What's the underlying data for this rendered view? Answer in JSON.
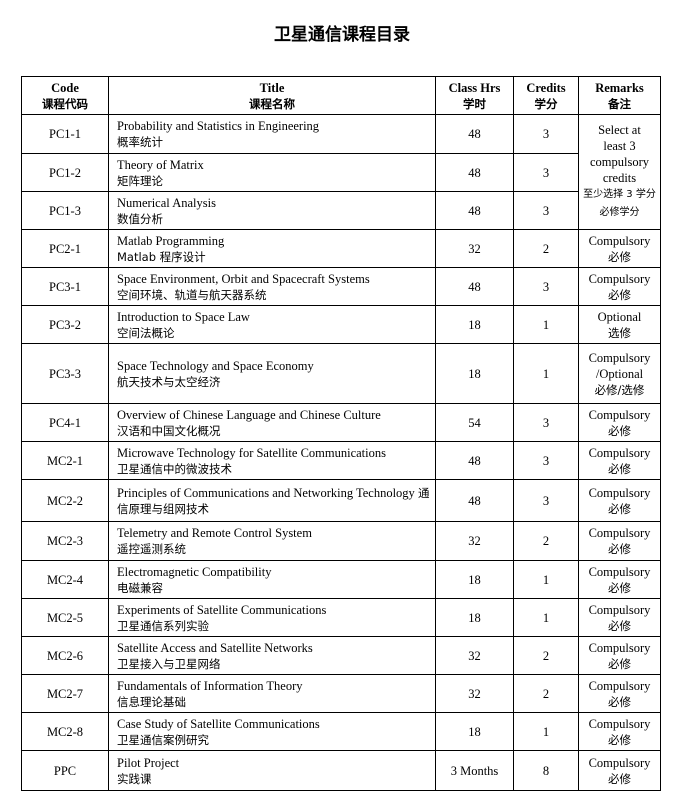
{
  "title": "卫星通信课程目录",
  "headers": {
    "code": {
      "en": "Code",
      "zh": "课程代码"
    },
    "title": {
      "en": "Title",
      "zh": "课程名称"
    },
    "hours": {
      "en": "Class Hrs",
      "zh": "学时"
    },
    "credits": {
      "en": "Credits",
      "zh": "学分"
    },
    "remarks": {
      "en": "Remarks",
      "zh": "备注"
    }
  },
  "group_remark": {
    "en": "Select at least 3 compulsory credits",
    "zh": "至少选择 3 学分必修学分"
  },
  "rows": [
    {
      "code": "PC1-1",
      "en": "Probability and Statistics in Engineering",
      "zh": "概率统计",
      "hours": "48",
      "credits": "3"
    },
    {
      "code": "PC1-2",
      "en": "Theory of Matrix",
      "zh": "矩阵理论",
      "hours": "48",
      "credits": "3"
    },
    {
      "code": "PC1-3",
      "en": "Numerical Analysis",
      "zh": "数值分析",
      "hours": "48",
      "credits": "3"
    },
    {
      "code": "PC2-1",
      "en": "Matlab Programming",
      "zh": "Matlab 程序设计",
      "hours": "32",
      "credits": "2",
      "r_en": "Compulsory",
      "r_zh": "必修"
    },
    {
      "code": "PC3-1",
      "en": "Space Environment, Orbit and Spacecraft Systems",
      "zh": "空间环境、轨道与航天器系统",
      "hours": "48",
      "credits": "3",
      "r_en": "Compulsory",
      "r_zh": "必修"
    },
    {
      "code": "PC3-2",
      "en": "Introduction to Space Law",
      "zh": "空间法概论",
      "hours": "18",
      "credits": "1",
      "r_en": "Optional",
      "r_zh": "选修"
    },
    {
      "code": "PC3-3",
      "en": "Space Technology and Space Economy",
      "zh": "航天技术与太空经济",
      "hours": "18",
      "credits": "1",
      "r_en": "Compulsory /Optional",
      "r_zh": "必修/选修"
    },
    {
      "code": "PC4-1",
      "en": "Overview of Chinese Language and Chinese Culture",
      "zh": "汉语和中国文化概况",
      "hours": "54",
      "credits": "3",
      "r_en": "Compulsory",
      "r_zh": "必修"
    },
    {
      "code": "MC2-1",
      "en": "Microwave Technology for Satellite Communications",
      "zh": "卫星通信中的微波技术",
      "hours": "48",
      "credits": "3",
      "r_en": "Compulsory",
      "r_zh": "必修"
    },
    {
      "code": "MC2-2",
      "en": "Principles of Communications and Networking Technology",
      "zh": "通信原理与组网技术",
      "hours": "48",
      "credits": "3",
      "r_en": "Compulsory",
      "r_zh": "必修"
    },
    {
      "code": "MC2-3",
      "en": "Telemetry and Remote Control System",
      "zh": "遥控遥测系统",
      "hours": "32",
      "credits": "2",
      "r_en": "Compulsory",
      "r_zh": "必修"
    },
    {
      "code": "MC2-4",
      "en": "Electromagnetic Compatibility",
      "zh": "电磁兼容",
      "hours": "18",
      "credits": "1",
      "r_en": "Compulsory",
      "r_zh": "必修"
    },
    {
      "code": "MC2-5",
      "en": "Experiments of Satellite Communications",
      "zh": "卫星通信系列实验",
      "hours": "18",
      "credits": "1",
      "r_en": "Compulsory",
      "r_zh": "必修"
    },
    {
      "code": "MC2-6",
      "en": "Satellite Access and Satellite Networks",
      "zh": "卫星接入与卫星网络",
      "hours": "32",
      "credits": "2",
      "r_en": "Compulsory",
      "r_zh": "必修"
    },
    {
      "code": "MC2-7",
      "en": "Fundamentals of Information Theory",
      "zh": "信息理论基础",
      "hours": "32",
      "credits": "2",
      "r_en": "Compulsory",
      "r_zh": "必修"
    },
    {
      "code": "MC2-8",
      "en": "Case Study of Satellite Communications",
      "zh": "卫星通信案例研究",
      "hours": "18",
      "credits": "1",
      "r_en": "Compulsory",
      "r_zh": "必修"
    },
    {
      "code": "PPC",
      "en": "Pilot Project",
      "zh": "实践课",
      "hours": "3 Months",
      "credits": "8",
      "r_en": "Compulsory",
      "r_zh": "必修"
    }
  ]
}
